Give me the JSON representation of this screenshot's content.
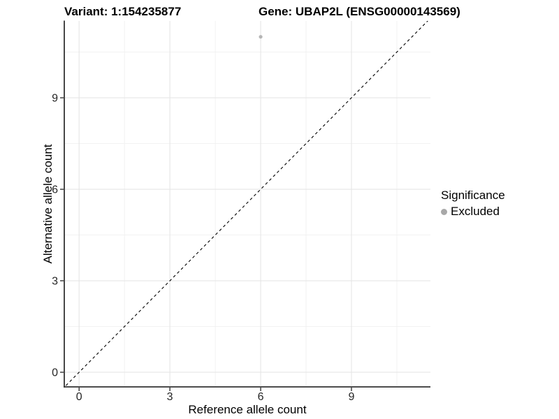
{
  "header": {
    "variant_title": "Variant: 1:154235877",
    "gene_title": "Gene: UBAP2L (ENSG00000143569)"
  },
  "chart_data": {
    "type": "scatter",
    "xlabel": "Reference allele count",
    "ylabel": "Alternative allele count",
    "xlim": [
      -0.49,
      11.61
    ],
    "ylim": [
      -0.48,
      11.52
    ],
    "x_ticks": [
      0,
      3,
      6,
      9
    ],
    "y_ticks": [
      0,
      3,
      6,
      9
    ],
    "x_minor_ticks": [
      1.5,
      4.5,
      7.5,
      10.5
    ],
    "y_minor_ticks": [
      1.5,
      4.5,
      7.5,
      10.5
    ],
    "grid": "major+minor",
    "series": [
      {
        "name": "Excluded",
        "marker": "circle",
        "color": "#b5b5b5",
        "points": [
          {
            "x": 6,
            "y": 11
          }
        ]
      }
    ],
    "reference_line": {
      "type": "identity",
      "style": "dashed",
      "color": "#000000"
    },
    "legend": {
      "title": "Significance",
      "position": "right",
      "entries": [
        {
          "label": "Excluded",
          "color": "#a8a8a8"
        }
      ]
    }
  },
  "colors": {
    "background": "#ffffff",
    "axis_line": "#333333",
    "tick_mark": "#333333",
    "grid_major": "#e6e6e6",
    "grid_minor": "#f0f0f0",
    "tick_label": "#262626",
    "title_text": "#000000"
  }
}
